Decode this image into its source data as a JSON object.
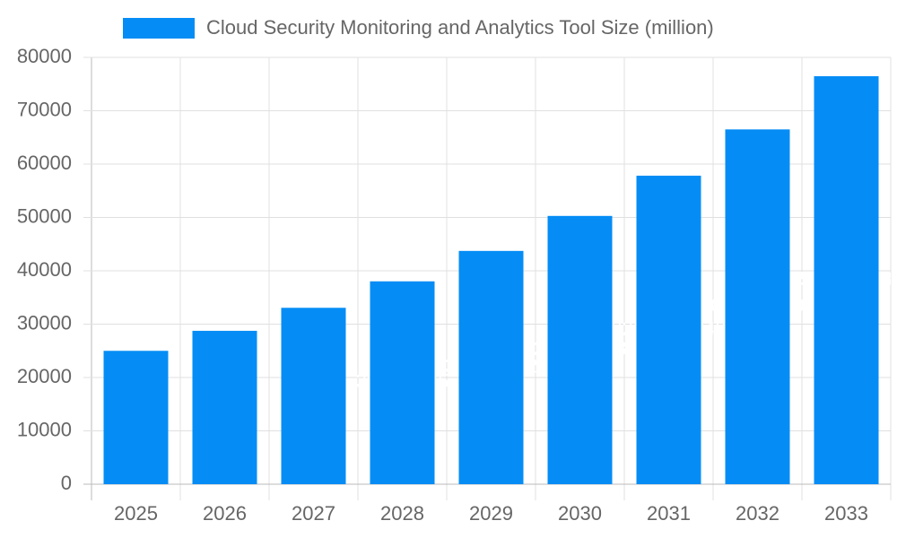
{
  "chart_data": {
    "type": "bar",
    "categories": [
      "2025",
      "2026",
      "2027",
      "2028",
      "2029",
      "2030",
      "2031",
      "2032",
      "2033"
    ],
    "series": [
      {
        "name": "Cloud Security Monitoring and Analytics Tool Size (million)",
        "color": "#058df5",
        "values": [
          25000,
          28750,
          33062.5,
          38021.875,
          43725.15625,
          50283.9296875,
          57826.518984375,
          66500.49683203125,
          76475.57135683594
        ]
      }
    ],
    "ylim": [
      0,
      80000
    ],
    "yticks": [
      0,
      10000,
      20000,
      30000,
      40000,
      50000,
      60000,
      70000,
      80000
    ],
    "grid": true
  }
}
